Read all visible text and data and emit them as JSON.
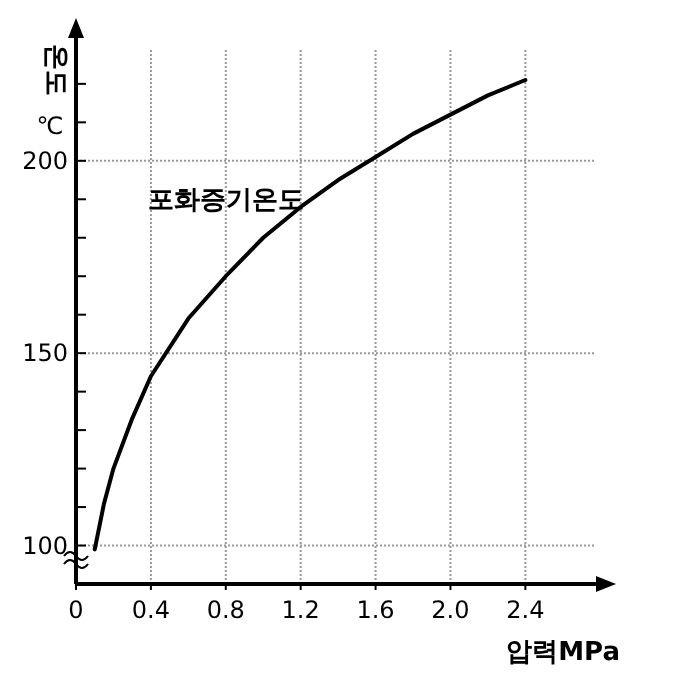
{
  "chart_data": {
    "type": "line",
    "xlabel": "압력MPa",
    "ylabel": "온도\n℃",
    "xlim": [
      0,
      2.82
    ],
    "ylim": [
      90,
      234
    ],
    "xticks": [
      0,
      0.4,
      0.8,
      1.2,
      1.6,
      {
        "value": 2.0,
        "label": "2.0"
      },
      2.4
    ],
    "yticks": [
      100,
      {
        "value": 110,
        "label": null
      },
      {
        "value": 120,
        "label": null
      },
      {
        "value": 130,
        "label": null
      },
      {
        "value": 140,
        "label": null
      },
      150,
      {
        "value": 160,
        "label": null
      },
      {
        "value": 170,
        "label": null
      },
      {
        "value": 180,
        "label": null
      },
      {
        "value": 190,
        "label": null
      },
      200,
      {
        "value": 210,
        "label": null
      },
      {
        "value": 220,
        "label": null
      }
    ],
    "grid": true,
    "legend": false,
    "marker": "none",
    "line_style": "solid",
    "series": [
      {
        "name": "포화증기온도",
        "color": "#000000",
        "x": [
          0.1,
          0.15,
          0.2,
          0.3,
          0.4,
          0.6,
          0.8,
          1.0,
          1.2,
          1.4,
          1.6,
          1.8,
          2.0,
          2.2,
          2.4
        ],
        "values": [
          99,
          111,
          120,
          133,
          144,
          159,
          170,
          180,
          188,
          195,
          201,
          207,
          212,
          217,
          221
        ]
      }
    ]
  }
}
